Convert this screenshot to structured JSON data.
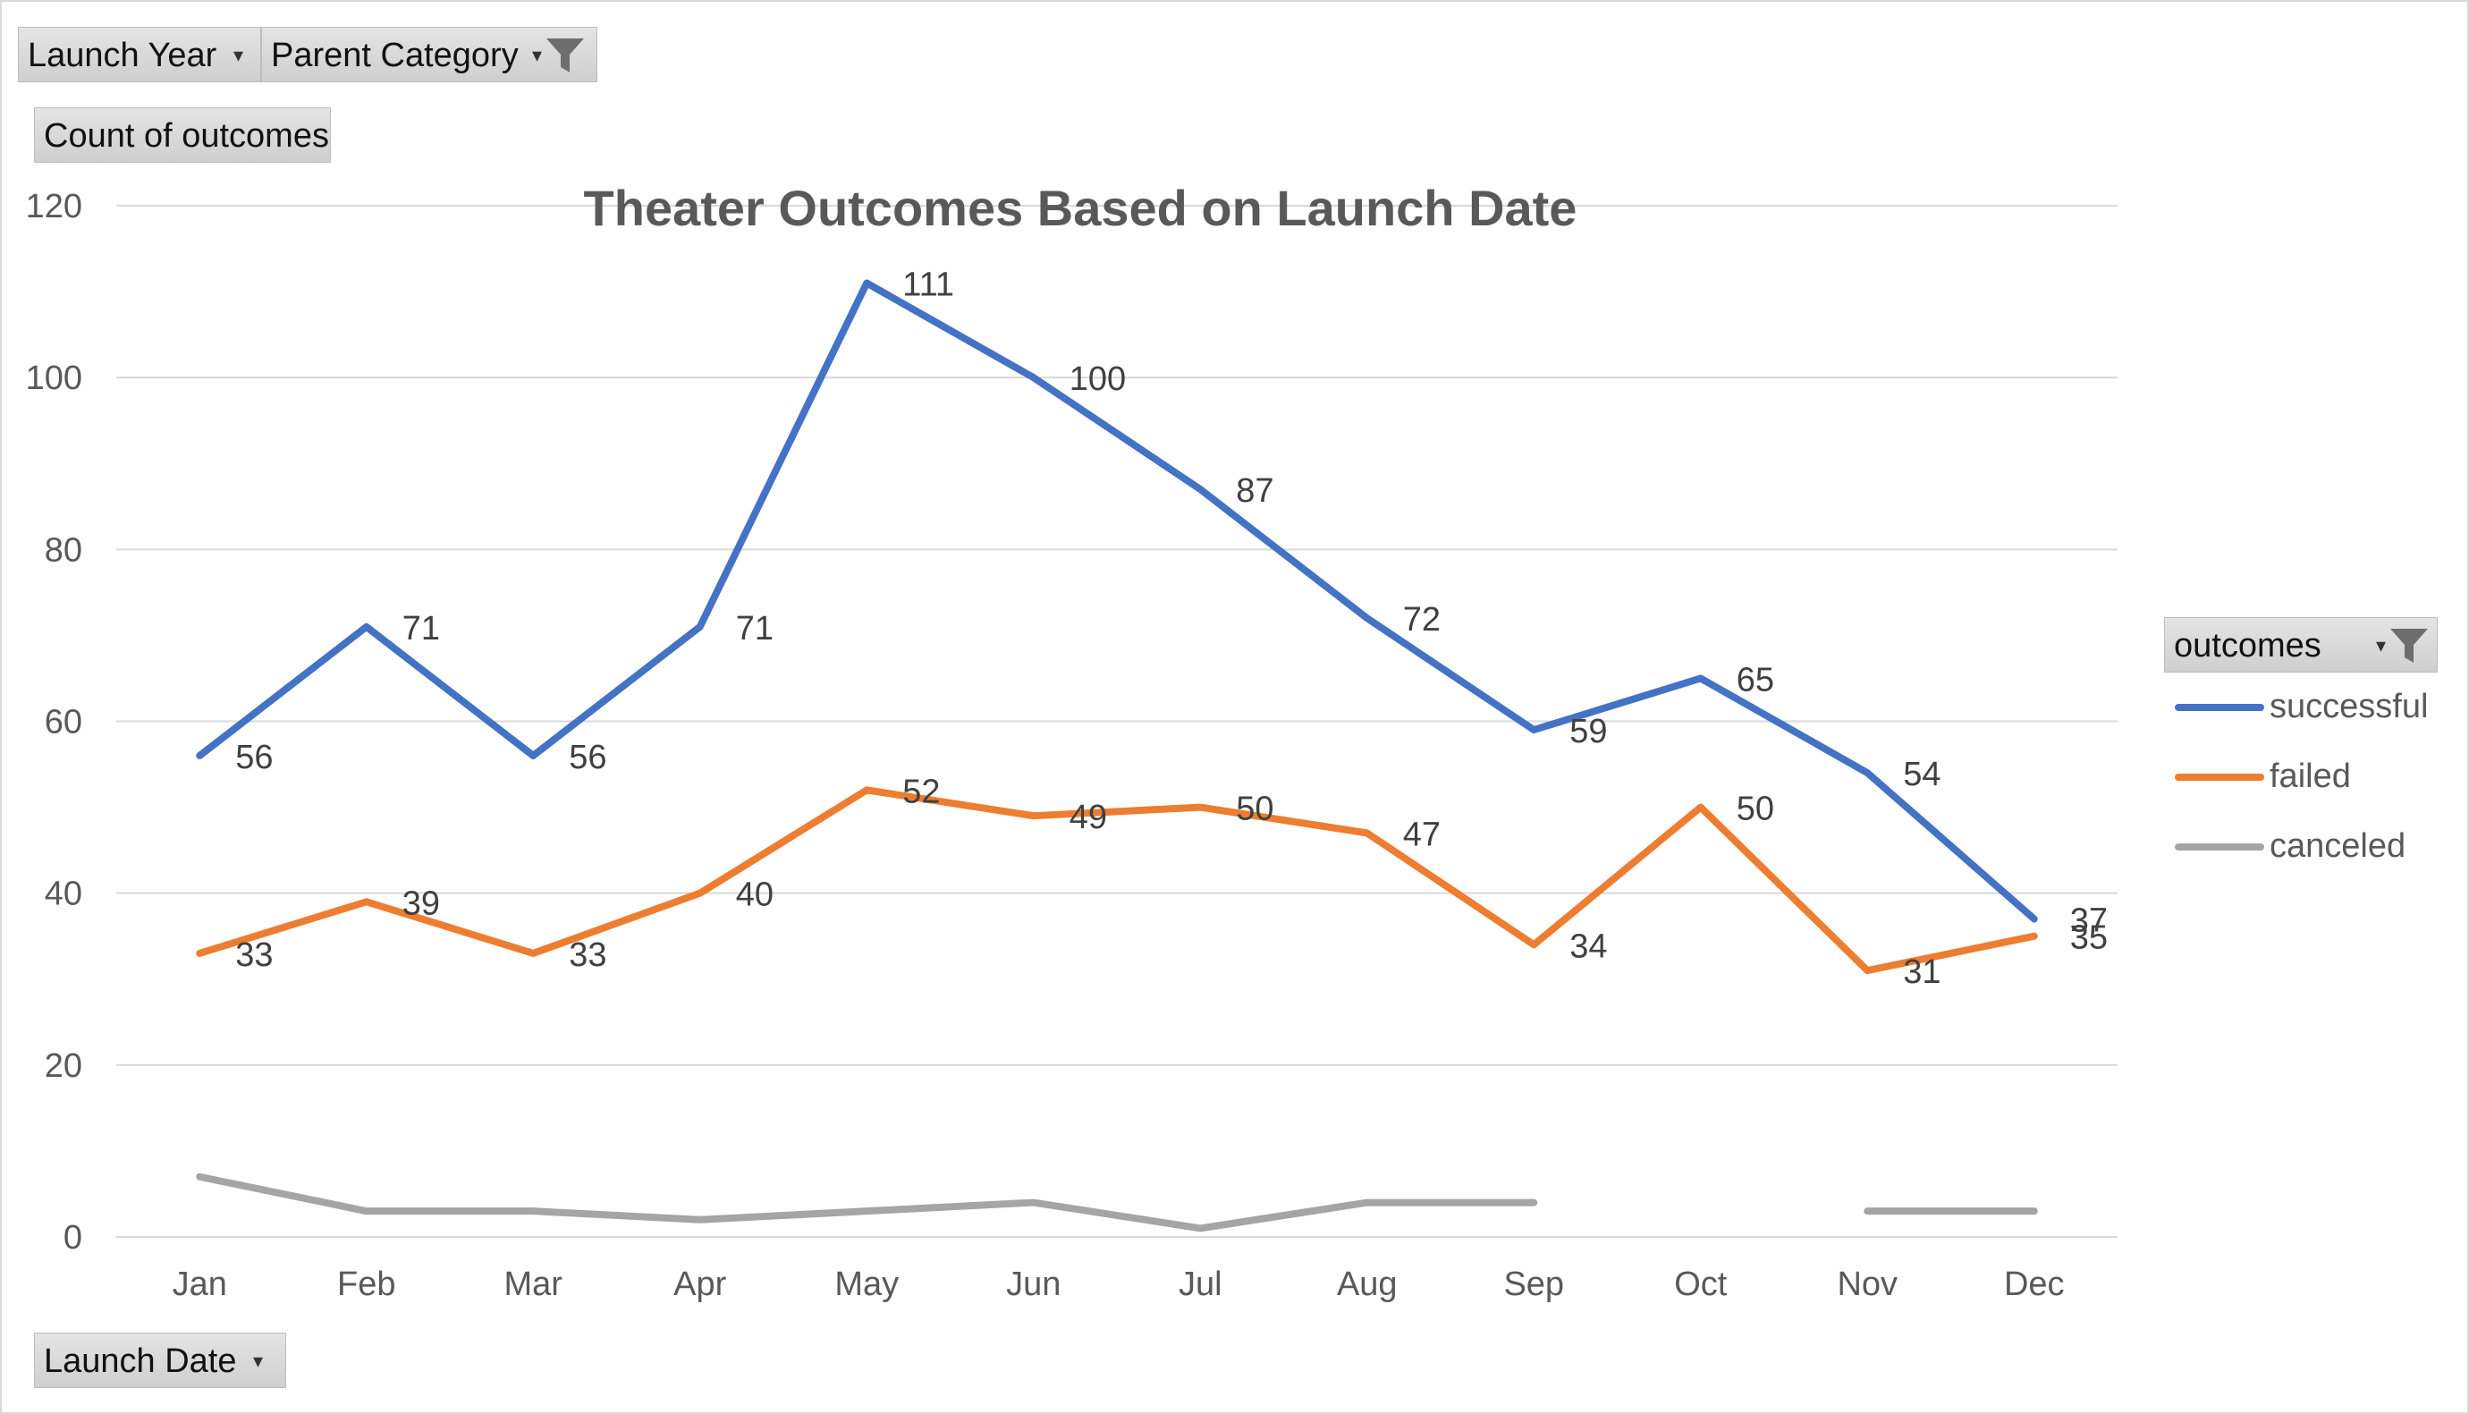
{
  "filters": {
    "launch_year": "Launch Year",
    "parent_category": "Parent Category",
    "values_field": "Count of outcomes",
    "axis_field": "Launch Date",
    "legend_field": "outcomes",
    "dropdown_glyph": "▾"
  },
  "chart_data": {
    "type": "line",
    "title": "Theater Outcomes Based on Launch Date",
    "xlabel": "",
    "ylabel": "",
    "ylim": [
      0,
      120
    ],
    "yticks": [
      0,
      20,
      40,
      60,
      80,
      100,
      120
    ],
    "categories": [
      "Jan",
      "Feb",
      "Mar",
      "Apr",
      "May",
      "Jun",
      "Jul",
      "Aug",
      "Sep",
      "Oct",
      "Nov",
      "Dec"
    ],
    "grid": true,
    "legend_position": "right",
    "series": [
      {
        "name": "successful",
        "color": "#4472c4",
        "values": [
          56,
          71,
          56,
          71,
          111,
          100,
          87,
          72,
          59,
          65,
          54,
          37
        ],
        "labels": true
      },
      {
        "name": "failed",
        "color": "#ed7d31",
        "values": [
          33,
          39,
          33,
          40,
          52,
          49,
          50,
          47,
          34,
          50,
          31,
          35
        ],
        "labels": true
      },
      {
        "name": "canceled",
        "color": "#a5a5a5",
        "values": [
          7,
          3,
          3,
          2,
          3,
          4,
          1,
          4,
          4,
          null,
          3,
          3
        ],
        "labels": false
      }
    ]
  }
}
